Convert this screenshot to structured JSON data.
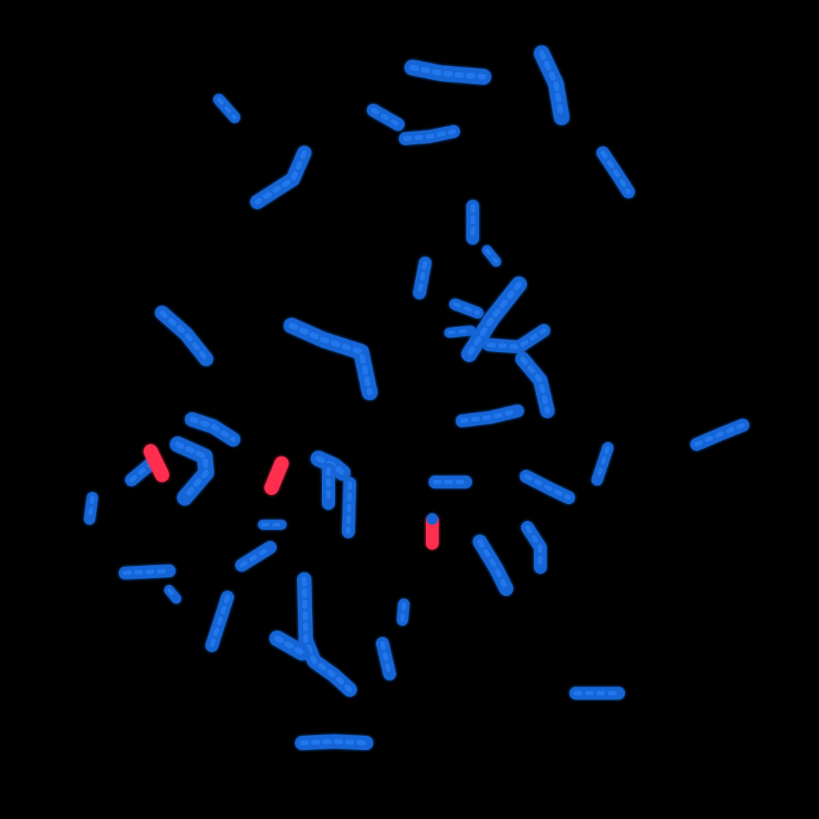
{
  "image": {
    "background_color": "#000000",
    "chromosome_color": "#1565d6",
    "chromosome_highlight": "#2f86ff",
    "probe_color": "#ff2f4f"
  }
}
